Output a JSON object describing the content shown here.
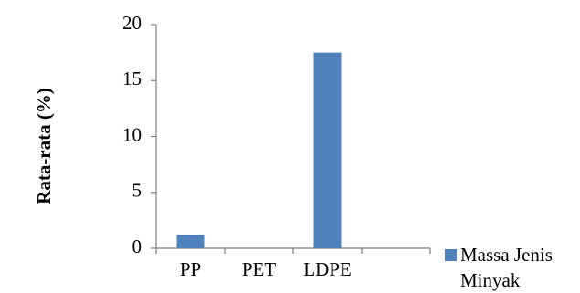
{
  "chart_data": {
    "type": "bar",
    "categories": [
      "PP",
      "PET",
      "LDPE",
      ""
    ],
    "series": [
      {
        "name": "Massa Jenis Minyak",
        "values": [
          1.2,
          0,
          17.5,
          0
        ]
      }
    ],
    "ylabel": "Rata-rata (%)",
    "xlabel": "",
    "ylim": [
      0,
      20
    ],
    "yticks": [
      0,
      5,
      10,
      15,
      20
    ],
    "grid": false,
    "legend_position": "bottom-right",
    "legend_lines": [
      "Massa Jenis",
      "Minyak"
    ],
    "colors": {
      "bar": "#4f81bd",
      "axis": "#7f7f7f"
    }
  }
}
